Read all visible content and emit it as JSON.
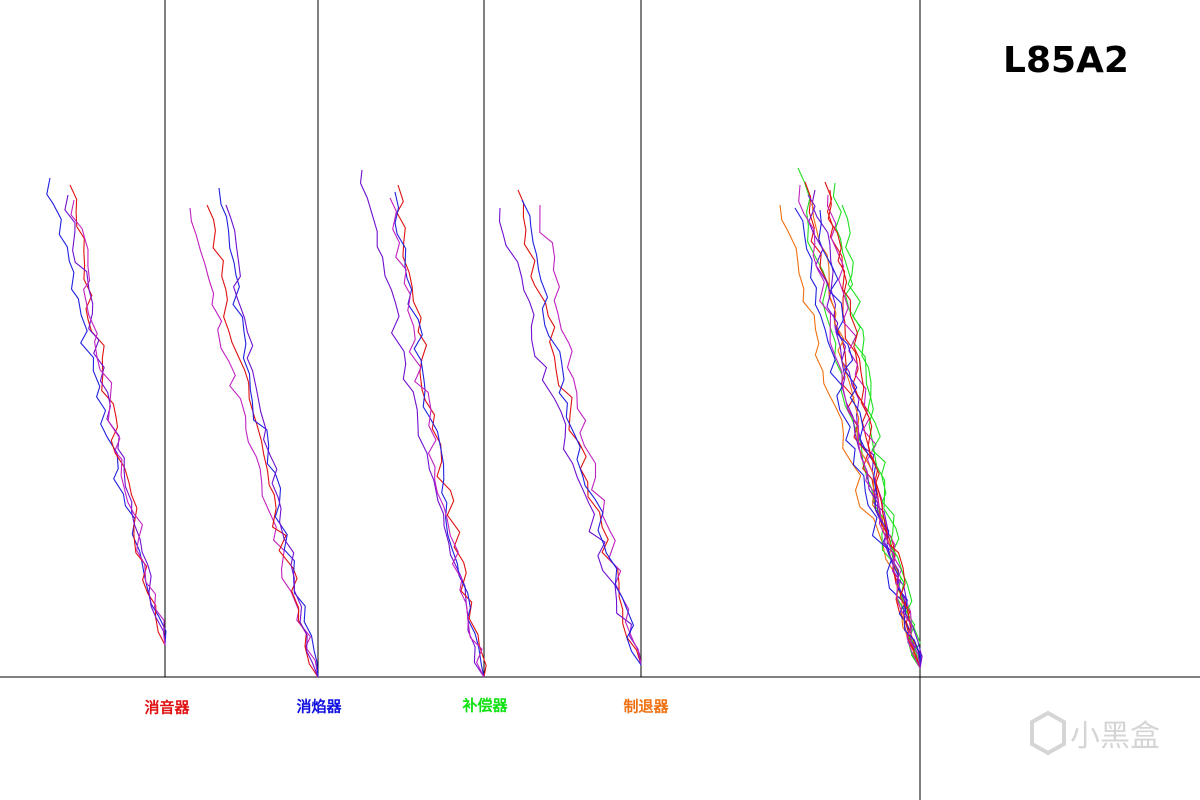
{
  "title": "L85A2",
  "labels": [
    "消音器",
    "消焰器",
    "补偿器",
    "制退器"
  ],
  "watermark": "小黑盒"
}
